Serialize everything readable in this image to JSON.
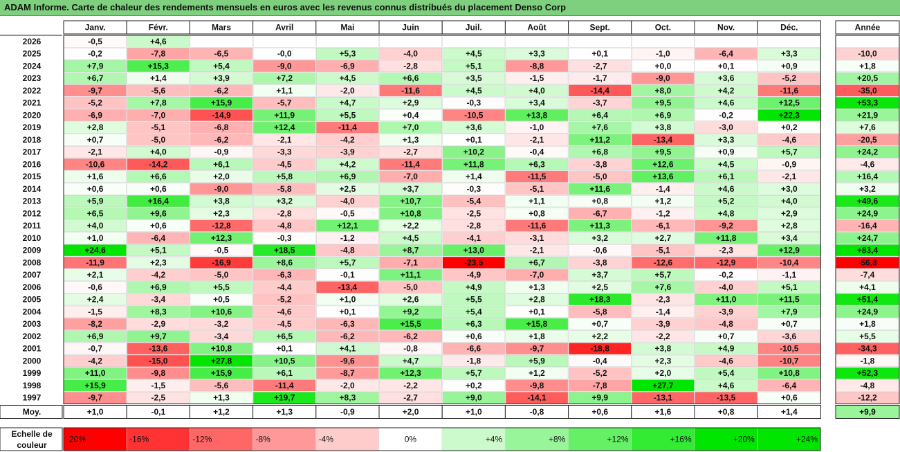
{
  "title": "ADAM Informe. Carte de chaleur des rendements mensuels en euros avec les revenus connus distribués du placement Denso Corp",
  "chart_data": {
    "type": "heatmap",
    "months": [
      "Janv.",
      "Févr.",
      "Mars",
      "Avril",
      "Mai",
      "Juin",
      "Juil.",
      "Août",
      "Sept.",
      "Oct.",
      "Nov.",
      "Déc."
    ],
    "year_column_label": "Année",
    "average_label": "Moy.",
    "rows": [
      {
        "year": "2026",
        "values": [
          "-0,5",
          "+4,6",
          "",
          "",
          "",
          "",
          "",
          "",
          "",
          "",
          "",
          ""
        ],
        "annual": ""
      },
      {
        "year": "2025",
        "values": [
          "-0,2",
          "-7,8",
          "-6,5",
          "-0,0",
          "+5,3",
          "-4,0",
          "+4,5",
          "+3,3",
          "+0,1",
          "-1,0",
          "-6,4",
          "+3,3"
        ],
        "annual": "-10,0"
      },
      {
        "year": "2024",
        "values": [
          "+7,9",
          "+15,3",
          "+5,4",
          "-9,0",
          "-6,9",
          "-2,8",
          "+5,1",
          "-8,8",
          "-2,7",
          "+0,0",
          "+0,1",
          "+0,9"
        ],
        "annual": "+1,8"
      },
      {
        "year": "2023",
        "values": [
          "+6,7",
          "+1,4",
          "+3,9",
          "+7,2",
          "+4,5",
          "+6,6",
          "+3,5",
          "-1,5",
          "-1,7",
          "-9,0",
          "+3,6",
          "-5,2"
        ],
        "annual": "+20,5"
      },
      {
        "year": "2022",
        "values": [
          "-9,7",
          "-5,6",
          "-6,2",
          "+1,1",
          "-2,0",
          "-11,6",
          "+4,5",
          "+4,0",
          "-14,4",
          "+8,0",
          "+4,2",
          "-11,6"
        ],
        "annual": "-35,0"
      },
      {
        "year": "2021",
        "values": [
          "-5,2",
          "+7,8",
          "+15,9",
          "-5,7",
          "+4,7",
          "+2,9",
          "-0,3",
          "+3,4",
          "-3,7",
          "+9,5",
          "+4,6",
          "+12,5"
        ],
        "annual": "+53,3"
      },
      {
        "year": "2020",
        "values": [
          "-6,9",
          "-7,0",
          "-14,9",
          "+11,9",
          "+5,5",
          "+0,4",
          "-10,5",
          "+13,8",
          "+6,4",
          "+6,9",
          "-0,2",
          "+22,3"
        ],
        "annual": "+21,9"
      },
      {
        "year": "2019",
        "values": [
          "+2,8",
          "-5,1",
          "-6,8",
          "+12,4",
          "-11,4",
          "+7,0",
          "+3,6",
          "-1,0",
          "+7,6",
          "+3,8",
          "-3,0",
          "+0,2"
        ],
        "annual": "+7,6"
      },
      {
        "year": "2018",
        "values": [
          "+0,7",
          "-5,0",
          "-6,2",
          "-2,1",
          "-4,2",
          "+1,3",
          "+0,1",
          "-2,1",
          "+11,2",
          "-13,4",
          "+3,3",
          "-4,6"
        ],
        "annual": "-20,5"
      },
      {
        "year": "2017",
        "values": [
          "-2,1",
          "+4,0",
          "-0,9",
          "-3,3",
          "-3,9",
          "-2,7",
          "+10,2",
          "-0,4",
          "+6,8",
          "+9,5",
          "+0,9",
          "+5,7"
        ],
        "annual": "+24,2"
      },
      {
        "year": "2016",
        "values": [
          "-10,6",
          "-14,2",
          "+6,1",
          "-4,5",
          "+4,2",
          "-11,4",
          "+11,8",
          "+6,3",
          "-3,8",
          "+12,6",
          "+4,5",
          "-0,9"
        ],
        "annual": "-4,6"
      },
      {
        "year": "2015",
        "values": [
          "+1,6",
          "+6,6",
          "+2,0",
          "+5,8",
          "+6,9",
          "-7,0",
          "+1,4",
          "-11,5",
          "-5,0",
          "+13,6",
          "+6,1",
          "-2,1"
        ],
        "annual": "+16,4"
      },
      {
        "year": "2014",
        "values": [
          "+0,6",
          "+0,6",
          "-9,0",
          "-5,8",
          "+2,5",
          "+3,7",
          "-0,3",
          "-5,1",
          "+11,6",
          "-1,4",
          "+4,6",
          "+3,0"
        ],
        "annual": "+3,2"
      },
      {
        "year": "2013",
        "values": [
          "+5,9",
          "+16,4",
          "+3,8",
          "+3,2",
          "-4,0",
          "+10,7",
          "-5,4",
          "+1,1",
          "+0,8",
          "+1,2",
          "+5,2",
          "+4,0"
        ],
        "annual": "+49,6"
      },
      {
        "year": "2012",
        "values": [
          "+6,5",
          "+9,6",
          "+2,3",
          "-2,8",
          "-0,5",
          "+10,8",
          "-2,5",
          "+0,8",
          "-6,7",
          "-1,2",
          "+4,8",
          "+2,9"
        ],
        "annual": "+24,9"
      },
      {
        "year": "2011",
        "values": [
          "+4,0",
          "+0,6",
          "-12,8",
          "-4,8",
          "+12,1",
          "+2,2",
          "-2,8",
          "-11,6",
          "+11,3",
          "-6,1",
          "-9,2",
          "+2,8"
        ],
        "annual": "-16,4"
      },
      {
        "year": "2010",
        "values": [
          "+1,0",
          "-6,4",
          "+12,3",
          "-0,3",
          "-1,2",
          "+4,5",
          "-4,1",
          "-3,1",
          "+3,2",
          "+2,7",
          "+11,8",
          "+3,4"
        ],
        "annual": "+24,7"
      },
      {
        "year": "2009",
        "values": [
          "+24,6",
          "+5,1",
          "-0,5",
          "+18,5",
          "-4,8",
          "+8,7",
          "+13,0",
          "-2,1",
          "-0,6",
          "-5,1",
          "-2,3",
          "+12,9"
        ],
        "annual": "+83,4"
      },
      {
        "year": "2008",
        "values": [
          "-11,9",
          "+2,3",
          "-16,9",
          "+8,6",
          "+5,7",
          "-7,1",
          "-23,5",
          "+6,7",
          "-3,8",
          "-12,6",
          "-12,9",
          "-10,4"
        ],
        "annual": "-56,8"
      },
      {
        "year": "2007",
        "values": [
          "+2,1",
          "-4,2",
          "-5,0",
          "-6,3",
          "-0,1",
          "+11,1",
          "-4,9",
          "-7,0",
          "+3,7",
          "+5,7",
          "-0,2",
          "-1,1"
        ],
        "annual": "-7,4"
      },
      {
        "year": "2006",
        "values": [
          "-0,6",
          "+6,9",
          "+5,5",
          "-4,4",
          "-13,4",
          "-5,0",
          "+4,9",
          "+1,3",
          "+2,5",
          "+7,6",
          "-4,0",
          "+5,1"
        ],
        "annual": "+4,1"
      },
      {
        "year": "2005",
        "values": [
          "+2,4",
          "-3,4",
          "+0,5",
          "-5,2",
          "+1,0",
          "+2,6",
          "+5,5",
          "+2,8",
          "+18,3",
          "-2,3",
          "+11,0",
          "+11,5"
        ],
        "annual": "+51,4"
      },
      {
        "year": "2004",
        "values": [
          "-1,5",
          "+8,3",
          "+10,6",
          "-4,6",
          "+0,1",
          "+9,2",
          "+5,4",
          "+0,1",
          "-5,8",
          "-1,4",
          "-3,9",
          "+7,9"
        ],
        "annual": "+24,9"
      },
      {
        "year": "2003",
        "values": [
          "-8,2",
          "-2,9",
          "-3,2",
          "-4,5",
          "-6,3",
          "+15,5",
          "+6,3",
          "+15,8",
          "+0,7",
          "-3,9",
          "-4,8",
          "+0,7"
        ],
        "annual": "+1,8"
      },
      {
        "year": "2002",
        "values": [
          "+6,9",
          "+9,7",
          "-3,4",
          "+6,5",
          "-6,2",
          "-6,2",
          "+0,6",
          "+1,8",
          "+2,2",
          "-2,2",
          "+0,7",
          "-3,6"
        ],
        "annual": "+5,5"
      },
      {
        "year": "2001",
        "values": [
          "-0,7",
          "-13,6",
          "+10,8",
          "+0,1",
          "+4,1",
          "-0,8",
          "-6,6",
          "-9,7",
          "-18,8",
          "+3,8",
          "+4,9",
          "-10,5"
        ],
        "annual": "-34,3"
      },
      {
        "year": "2000",
        "values": [
          "-4,2",
          "-15,0",
          "+27,8",
          "+10,5",
          "-9,6",
          "+4,7",
          "-1,8",
          "+5,9",
          "-0,4",
          "+2,3",
          "-4,6",
          "-10,7"
        ],
        "annual": "-1,8"
      },
      {
        "year": "1999",
        "values": [
          "+11,0",
          "-9,8",
          "+15,9",
          "+6,1",
          "-8,7",
          "+12,3",
          "+5,7",
          "+1,2",
          "-5,2",
          "+2,0",
          "+5,4",
          "+10,8"
        ],
        "annual": "+52,3"
      },
      {
        "year": "1998",
        "values": [
          "+15,9",
          "-1,5",
          "-5,6",
          "-11,4",
          "-2,0",
          "-2,2",
          "+0,2",
          "-9,8",
          "-7,8",
          "+27,7",
          "+4,6",
          "-6,4"
        ],
        "annual": "-4,8"
      },
      {
        "year": "1997",
        "values": [
          "-9,7",
          "-2,5",
          "+1,3",
          "+19,7",
          "+8,3",
          "-2,7",
          "+9,0",
          "-14,1",
          "+9,9",
          "-13,1",
          "-13,5",
          "+0,6"
        ],
        "annual": "-12,2"
      }
    ],
    "averages": [
      "+1,0",
      "-0,1",
      "+1,2",
      "+1,3",
      "-0,9",
      "+2,0",
      "+1,0",
      "-0,8",
      "+0,6",
      "+1,6",
      "+0,8",
      "+1,4"
    ],
    "average_annual": "+9,9",
    "scale": {
      "label_line1": "Echelle de",
      "label_line2": "couleur",
      "stops": [
        {
          "label": "-20%",
          "value": -20
        },
        {
          "label": "-16%",
          "value": -16
        },
        {
          "label": "-12%",
          "value": -12
        },
        {
          "label": "-8%",
          "value": -8
        },
        {
          "label": "-4%",
          "value": -4
        },
        {
          "label": "0%",
          "value": 0
        },
        {
          "label": "+4%",
          "value": 4
        },
        {
          "label": "+8%",
          "value": 8
        },
        {
          "label": "+12%",
          "value": 12
        },
        {
          "label": "+16%",
          "value": 16
        },
        {
          "label": "+20%",
          "value": 20
        },
        {
          "label": "+24%",
          "value": 24
        }
      ]
    },
    "colors": {
      "negative_max": "#ff0000",
      "neutral": "#ffffff",
      "positive_max": "#00e600",
      "title_bar": "#7ed07e"
    }
  }
}
